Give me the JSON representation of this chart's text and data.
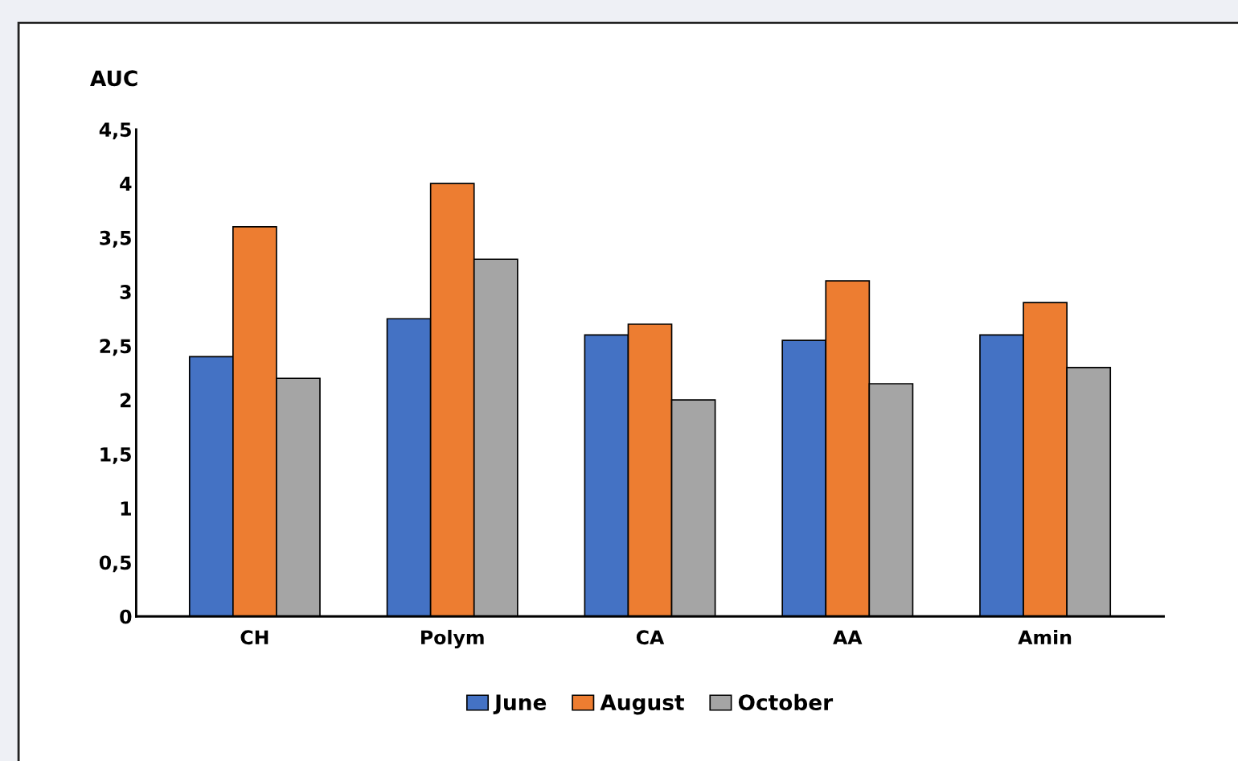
{
  "chart_data": {
    "type": "bar",
    "ylabel": "AUC",
    "categories": [
      "CH",
      "Polym",
      "CA",
      "AA",
      "Amin"
    ],
    "series": [
      {
        "name": "June",
        "color": "#4472c4",
        "values": [
          2.4,
          2.75,
          2.6,
          2.55,
          2.6
        ]
      },
      {
        "name": "August",
        "color": "#ed7d31",
        "values": [
          3.6,
          4.0,
          2.7,
          3.1,
          2.9
        ]
      },
      {
        "name": "October",
        "color": "#a5a5a5",
        "values": [
          2.2,
          3.3,
          2.0,
          2.15,
          2.3
        ]
      }
    ],
    "ylim": [
      0,
      4.5
    ],
    "yticks": [
      0,
      {
        "value": 0.5,
        "label": "0,5"
      },
      1,
      {
        "value": 1.5,
        "label": "1,5"
      },
      2,
      {
        "value": 2.5,
        "label": "2,5"
      },
      3,
      {
        "value": 3.5,
        "label": "3,5"
      },
      4,
      {
        "value": 4.5,
        "label": "4,5"
      }
    ],
    "grid": false,
    "legend": "bottom"
  }
}
